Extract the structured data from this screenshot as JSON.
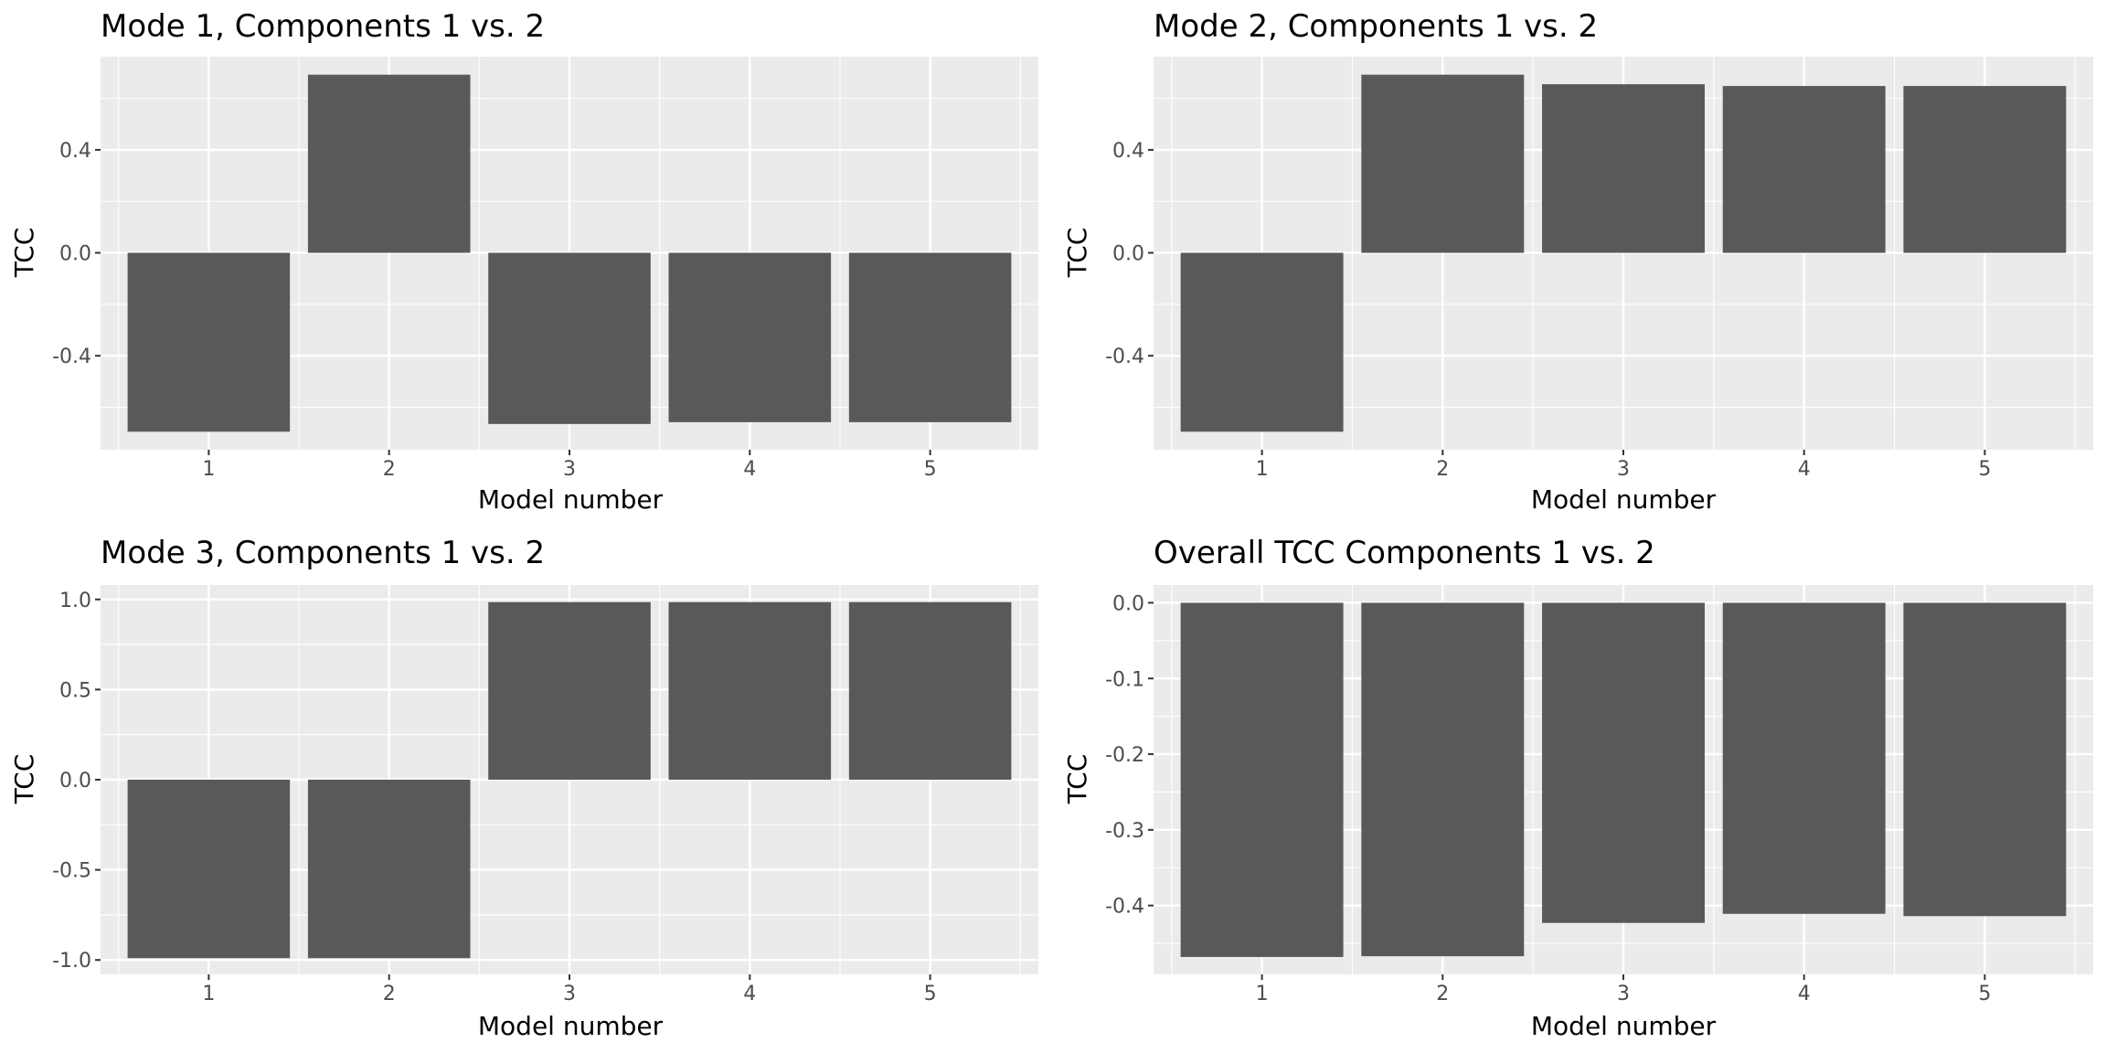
{
  "colors": {
    "panel_background": "#ebebeb",
    "grid_major": "#ffffff",
    "bar_fill": "#595959",
    "tick_text": "#4d4d4d",
    "tick_mark": "#333333"
  },
  "chart_data": [
    {
      "type": "bar",
      "title": "Mode 1, Components 1 vs. 2",
      "xlabel": "Model number",
      "ylabel": "TCC",
      "categories": [
        "1",
        "2",
        "3",
        "4",
        "5"
      ],
      "values": [
        -0.695,
        0.692,
        -0.665,
        -0.658,
        -0.658
      ],
      "ylim": [
        -0.765,
        0.762
      ],
      "yticks": [
        -0.4,
        0.0,
        0.4
      ],
      "ytick_labels": [
        "-0.4",
        "0.0",
        "0.4"
      ],
      "grid": true
    },
    {
      "type": "bar",
      "title": "Mode 2, Components 1 vs. 2",
      "xlabel": "Model number",
      "ylabel": "TCC",
      "categories": [
        "1",
        "2",
        "3",
        "4",
        "5"
      ],
      "values": [
        -0.695,
        0.692,
        0.655,
        0.648,
        0.648
      ],
      "ylim": [
        -0.765,
        0.762
      ],
      "yticks": [
        -0.4,
        0.0,
        0.4
      ],
      "ytick_labels": [
        "-0.4",
        "0.0",
        "0.4"
      ],
      "grid": true
    },
    {
      "type": "bar",
      "title": "Mode 3, Components 1 vs. 2",
      "xlabel": "Model number",
      "ylabel": "TCC",
      "categories": [
        "1",
        "2",
        "3",
        "4",
        "5"
      ],
      "values": [
        -0.99,
        -0.99,
        0.985,
        0.985,
        0.985
      ],
      "ylim": [
        -1.08,
        1.08
      ],
      "yticks": [
        -1.0,
        -0.5,
        0.0,
        0.5,
        1.0
      ],
      "ytick_labels": [
        "-1.0",
        "-0.5",
        "0.0",
        "0.5",
        "1.0"
      ],
      "grid": true
    },
    {
      "type": "bar",
      "title": "Overall TCC Components 1 vs. 2",
      "xlabel": "Model number",
      "ylabel": "TCC",
      "categories": [
        "1",
        "2",
        "3",
        "4",
        "5"
      ],
      "values": [
        -0.468,
        -0.467,
        -0.423,
        -0.411,
        -0.414
      ],
      "ylim": [
        -0.491,
        0.0235
      ],
      "yticks": [
        -0.4,
        -0.3,
        -0.2,
        -0.1,
        0.0
      ],
      "ytick_labels": [
        "-0.4",
        "-0.3",
        "-0.2",
        "-0.1",
        "0.0"
      ],
      "grid": true
    }
  ]
}
